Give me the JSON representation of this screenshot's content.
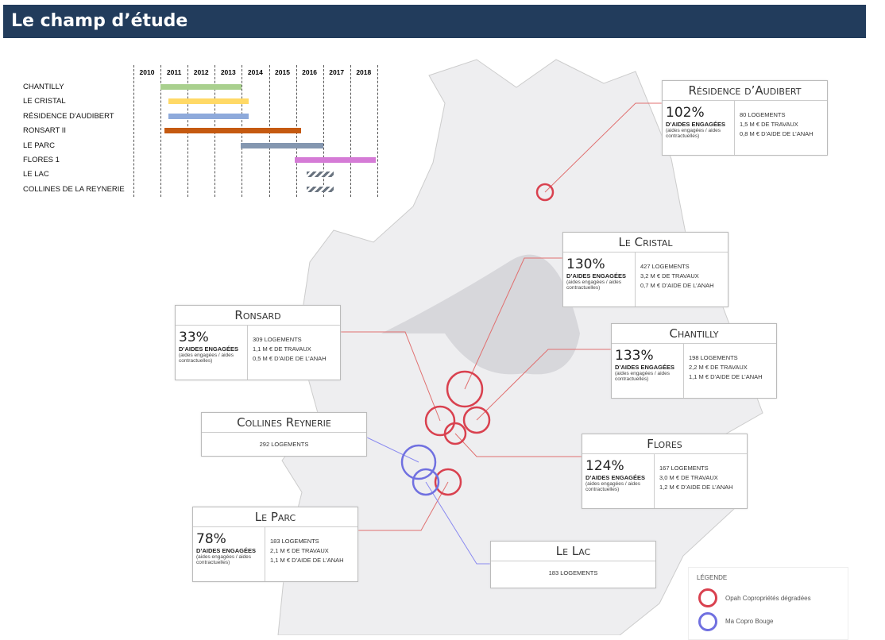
{
  "header": {
    "title": "Le champ d’étude"
  },
  "gantt": {
    "years": [
      "2010",
      "2011",
      "2012",
      "2013",
      "2014",
      "2015",
      "2016",
      "2017",
      "2018"
    ],
    "rows": [
      {
        "label": "CHANTILLY",
        "start": 2011.0,
        "end": 2014.0,
        "color": "#a9d08e",
        "style": "solid"
      },
      {
        "label": "LE CRISTAL",
        "start": 2011.3,
        "end": 2014.25,
        "color": "#ffd966",
        "style": "solid"
      },
      {
        "label": "RÉSIDENCE D'AUDIBERT",
        "start": 2011.3,
        "end": 2014.25,
        "color": "#8eaadb",
        "style": "solid"
      },
      {
        "label": "RONSART II",
        "start": 2011.15,
        "end": 2016.2,
        "color": "#c55a11",
        "style": "solid"
      },
      {
        "label": "LE PARC",
        "start": 2013.95,
        "end": 2017.0,
        "color": "#8497b0",
        "style": "solid"
      },
      {
        "label": "FLORES 1",
        "start": 2015.95,
        "end": 2018.95,
        "color": "#d57bd6",
        "style": "solid"
      },
      {
        "label": "LE LAC",
        "start": 2016.4,
        "end": 2017.4,
        "color": "#6a7480",
        "style": "hatched"
      },
      {
        "label": "COLLINES DE LA REYNERIE",
        "start": 2016.4,
        "end": 2017.4,
        "color": "#6a7480",
        "style": "hatched"
      }
    ]
  },
  "boxes": [
    {
      "title": "Résidence d’Audibert",
      "pct": "102%",
      "engaged": "D’AIDES ENGAGÉES",
      "note": "(aides engagées / aides contractuelles)",
      "lines": [
        "80 LOGEMENTS",
        "1,5 M € DE TRAVAUX",
        "0,8 M € D’AIDE DE L’ANAH"
      ]
    },
    {
      "title": "Le Cristal",
      "pct": "130%",
      "engaged": "D’AIDES ENGAGÉES",
      "note": "(aides engagées / aides contractuelles)",
      "lines": [
        "427 LOGEMENTS",
        "3,2 M € DE TRAVAUX",
        "0,7 M € D’AIDE DE L’ANAH"
      ]
    },
    {
      "title": "Ronsard",
      "pct": "33%",
      "engaged": "D’AIDES ENGAGÉES",
      "note": "(aides engagées / aides contractuelles)",
      "lines": [
        "309 LOGEMENTS",
        "1,1 M € DE TRAVAUX",
        "0,5 M € D’AIDE DE L’ANAH"
      ]
    },
    {
      "title": "Chantilly",
      "pct": "133%",
      "engaged": "D’AIDES ENGAGÉES",
      "note": "(aides engagées / aides contractuelles)",
      "lines": [
        "198 LOGEMENTS",
        "2,2 M € DE TRAVAUX",
        "1,1 M € D’AIDE DE L’ANAH"
      ]
    },
    {
      "title": "Flores",
      "pct": "124%",
      "engaged": "D’AIDES ENGAGÉES",
      "note": "(aides engagées / aides contractuelles)",
      "lines": [
        "167 LOGEMENTS",
        "3,0 M € DE TRAVAUX",
        "1,2 M € D’AIDE DE L’ANAH"
      ]
    },
    {
      "title": "Le Parc",
      "pct": "78%",
      "engaged": "D’AIDES ENGAGÉES",
      "note": "(aides engagées / aides contractuelles)",
      "lines": [
        "183 LOGEMENTS",
        "2,1 M € DE TRAVAUX",
        "1,1 M € D’AIDE DE L’ANAH"
      ]
    }
  ],
  "simple_boxes": [
    {
      "title": "Collines Reynerie",
      "line": "292 LOGEMENTS"
    },
    {
      "title": "Le Lac",
      "line": "183 LOGEMENTS"
    }
  ],
  "legend": {
    "title": "LÉGENDE",
    "items": [
      {
        "label": "Opah Copropriétés dégradées",
        "color": "#d9414f"
      },
      {
        "label": "Ma Copro Bouge",
        "color": "#7070e0"
      }
    ]
  }
}
